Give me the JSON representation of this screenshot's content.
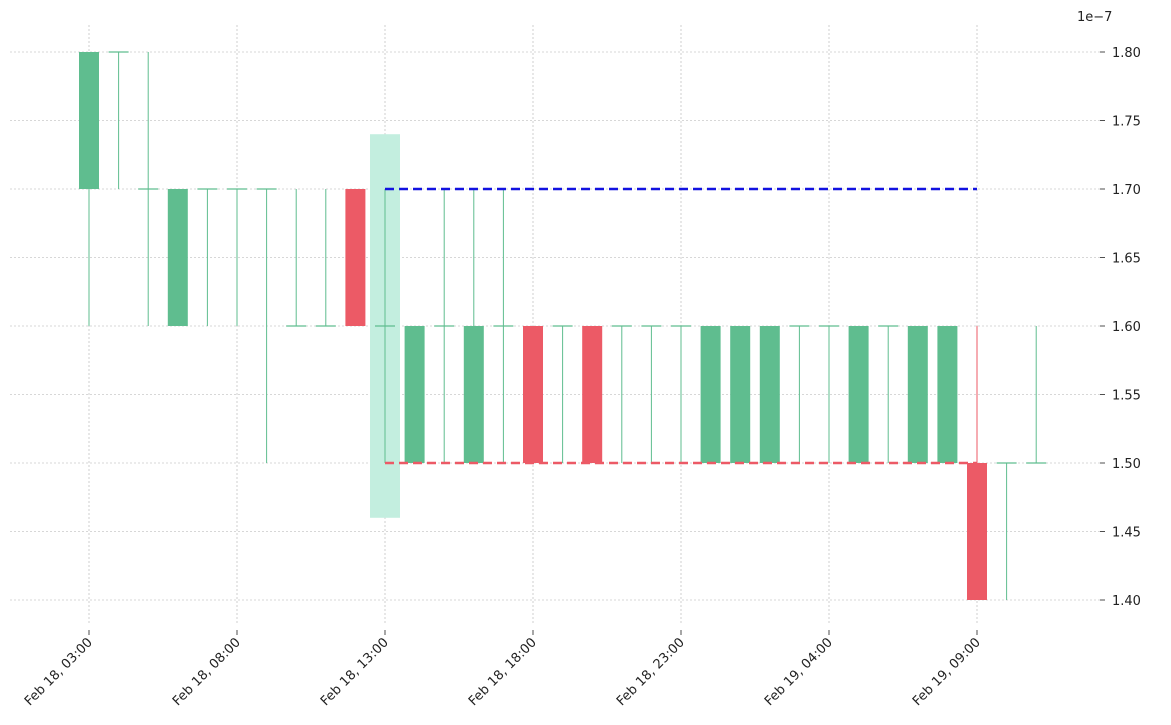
{
  "chart_data": {
    "type": "candlestick",
    "y_scale_label": "1e−7",
    "ylim": [
      1.38,
      1.82
    ],
    "yticks": [
      "1.40",
      "1.45",
      "1.50",
      "1.55",
      "1.60",
      "1.65",
      "1.70",
      "1.75",
      "1.80"
    ],
    "xticks": [
      {
        "label": "Feb 18, 03:00",
        "index": 0
      },
      {
        "label": "Feb 18, 08:00",
        "index": 5
      },
      {
        "label": "Feb 18, 13:00",
        "index": 10
      },
      {
        "label": "Feb 18, 18:00",
        "index": 15
      },
      {
        "label": "Feb 18, 23:00",
        "index": 20
      },
      {
        "label": "Feb 19, 04:00",
        "index": 25
      },
      {
        "label": "Feb 19, 09:00",
        "index": 30
      }
    ],
    "candles": [
      {
        "time": "Feb 18, 03:00",
        "open": 1.7,
        "high": 1.8,
        "low": 1.6,
        "close": 1.8
      },
      {
        "time": "Feb 18, 04:00",
        "open": 1.8,
        "high": 1.8,
        "low": 1.7,
        "close": 1.8
      },
      {
        "time": "Feb 18, 05:00",
        "open": 1.7,
        "high": 1.8,
        "low": 1.6,
        "close": 1.7
      },
      {
        "time": "Feb 18, 06:00",
        "open": 1.6,
        "high": 1.7,
        "low": 1.6,
        "close": 1.7
      },
      {
        "time": "Feb 18, 07:00",
        "open": 1.7,
        "high": 1.7,
        "low": 1.6,
        "close": 1.7
      },
      {
        "time": "Feb 18, 08:00",
        "open": 1.7,
        "high": 1.7,
        "low": 1.6,
        "close": 1.7
      },
      {
        "time": "Feb 18, 09:00",
        "open": 1.7,
        "high": 1.7,
        "low": 1.5,
        "close": 1.7
      },
      {
        "time": "Feb 18, 10:00",
        "open": 1.6,
        "high": 1.7,
        "low": 1.6,
        "close": 1.6
      },
      {
        "time": "Feb 18, 11:00",
        "open": 1.6,
        "high": 1.7,
        "low": 1.6,
        "close": 1.6
      },
      {
        "time": "Feb 18, 12:00",
        "open": 1.7,
        "high": 1.7,
        "low": 1.6,
        "close": 1.6
      },
      {
        "time": "Feb 18, 13:00",
        "open": 1.6,
        "high": 1.7,
        "low": 1.5,
        "close": 1.6
      },
      {
        "time": "Feb 18, 14:00",
        "open": 1.5,
        "high": 1.6,
        "low": 1.5,
        "close": 1.6
      },
      {
        "time": "Feb 18, 15:00",
        "open": 1.6,
        "high": 1.7,
        "low": 1.5,
        "close": 1.6
      },
      {
        "time": "Feb 18, 16:00",
        "open": 1.5,
        "high": 1.7,
        "low": 1.5,
        "close": 1.6
      },
      {
        "time": "Feb 18, 17:00",
        "open": 1.6,
        "high": 1.7,
        "low": 1.5,
        "close": 1.6
      },
      {
        "time": "Feb 18, 18:00",
        "open": 1.6,
        "high": 1.6,
        "low": 1.5,
        "close": 1.5
      },
      {
        "time": "Feb 18, 19:00",
        "open": 1.6,
        "high": 1.6,
        "low": 1.5,
        "close": 1.6
      },
      {
        "time": "Feb 18, 20:00",
        "open": 1.6,
        "high": 1.6,
        "low": 1.5,
        "close": 1.5
      },
      {
        "time": "Feb 18, 21:00",
        "open": 1.6,
        "high": 1.6,
        "low": 1.5,
        "close": 1.6
      },
      {
        "time": "Feb 18, 22:00",
        "open": 1.6,
        "high": 1.6,
        "low": 1.5,
        "close": 1.6
      },
      {
        "time": "Feb 18, 23:00",
        "open": 1.6,
        "high": 1.6,
        "low": 1.5,
        "close": 1.6
      },
      {
        "time": "Feb 19, 00:00",
        "open": 1.5,
        "high": 1.6,
        "low": 1.5,
        "close": 1.6
      },
      {
        "time": "Feb 19, 01:00",
        "open": 1.5,
        "high": 1.6,
        "low": 1.5,
        "close": 1.6
      },
      {
        "time": "Feb 19, 02:00",
        "open": 1.5,
        "high": 1.6,
        "low": 1.5,
        "close": 1.6
      },
      {
        "time": "Feb 19, 03:00",
        "open": 1.6,
        "high": 1.6,
        "low": 1.5,
        "close": 1.6
      },
      {
        "time": "Feb 19, 04:00",
        "open": 1.6,
        "high": 1.6,
        "low": 1.5,
        "close": 1.6
      },
      {
        "time": "Feb 19, 05:00",
        "open": 1.5,
        "high": 1.6,
        "low": 1.5,
        "close": 1.6
      },
      {
        "time": "Feb 19, 06:00",
        "open": 1.6,
        "high": 1.6,
        "low": 1.5,
        "close": 1.6
      },
      {
        "time": "Feb 19, 07:00",
        "open": 1.5,
        "high": 1.6,
        "low": 1.5,
        "close": 1.6
      },
      {
        "time": "Feb 19, 08:00",
        "open": 1.5,
        "high": 1.6,
        "low": 1.5,
        "close": 1.6
      },
      {
        "time": "Feb 19, 09:00",
        "open": 1.5,
        "high": 1.6,
        "low": 1.4,
        "close": 1.4
      },
      {
        "time": "Feb 19, 10:00",
        "open": 1.5,
        "high": 1.5,
        "low": 1.4,
        "close": 1.5
      },
      {
        "time": "Feb 19, 11:00",
        "open": 1.5,
        "high": 1.6,
        "low": 1.5,
        "close": 1.5
      }
    ],
    "highlight_band": {
      "index": 10,
      "low": 1.46,
      "high": 1.74
    },
    "resistance_line": {
      "value": 1.7,
      "from_index": 10,
      "to_index": 30
    },
    "support_line": {
      "value": 1.5,
      "from_index": 10,
      "to_index": 30
    },
    "grid": true,
    "colors": {
      "up": "#5fbd8f",
      "down": "#ec5a66",
      "highlight": "#c3eedf",
      "resistance": "#1212e0",
      "support": "#ec5a66",
      "grid": "#b0b0b0",
      "text": "#222222"
    }
  }
}
